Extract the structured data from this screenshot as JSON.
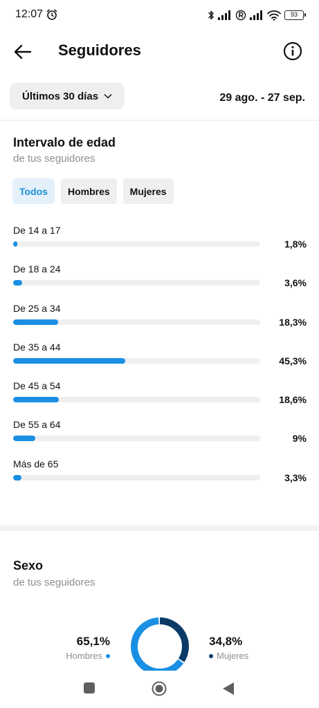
{
  "status_bar": {
    "time": "12:07",
    "battery": "93"
  },
  "header": {
    "title": "Seguidores"
  },
  "filters_bar": {
    "period": "Últimos 30 días",
    "date_range": "29 ago. - 27 sep."
  },
  "age": {
    "title": "Intervalo de edad",
    "subtitle": "de tus seguidores",
    "tabs": [
      {
        "label": "Todos",
        "active": true
      },
      {
        "label": "Hombres",
        "active": false
      },
      {
        "label": "Mujeres",
        "active": false
      }
    ],
    "rows": [
      {
        "label": "De 14 a 17",
        "value": "1,8%",
        "percent": 1.8
      },
      {
        "label": "De 18 a 24",
        "value": "3,6%",
        "percent": 3.6
      },
      {
        "label": "De 25 a 34",
        "value": "18,3%",
        "percent": 18.3
      },
      {
        "label": "De 35 a 44",
        "value": "45,3%",
        "percent": 45.3
      },
      {
        "label": "De 45 a 54",
        "value": "18,6%",
        "percent": 18.6
      },
      {
        "label": "De 55 a 64",
        "value": "9%",
        "percent": 9
      },
      {
        "label": "Más de 65",
        "value": "3,3%",
        "percent": 3.3
      }
    ]
  },
  "gender": {
    "title": "Sexo",
    "subtitle": "de tus seguidores",
    "men": {
      "value": "65,1%",
      "label": "Hombres",
      "percent": 65.1,
      "color": "#1a8fe3"
    },
    "women": {
      "value": "34,8%",
      "label": "Mujeres",
      "percent": 34.8,
      "color": "#0b3a66"
    }
  },
  "colors": {
    "accent": "#1a8fe3",
    "chip_active_bg": "#e4f1fb",
    "track": "#efefef"
  }
}
